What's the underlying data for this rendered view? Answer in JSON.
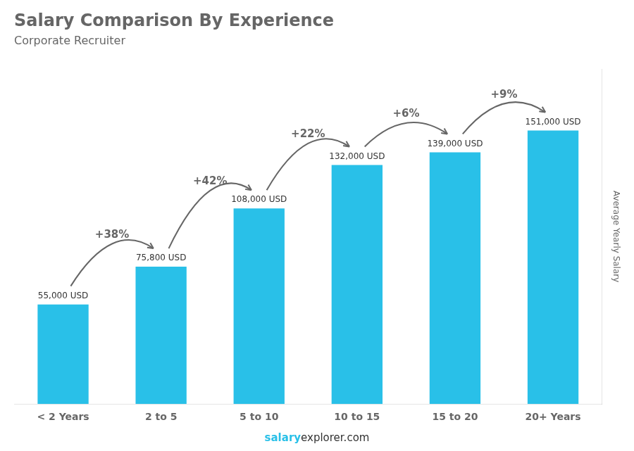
{
  "chart_data": {
    "type": "bar",
    "title": "Salary Comparison By Experience",
    "subtitle": "Corporate Recruiter",
    "y_label": "Average Yearly Salary",
    "categories": [
      "< 2 Years",
      "2 to 5",
      "5 to 10",
      "10 to 15",
      "15 to 20",
      "20+ Years"
    ],
    "values": [
      55000,
      75800,
      108000,
      132000,
      139000,
      151000
    ],
    "value_labels": [
      "55,000 USD",
      "75,800 USD",
      "108,000 USD",
      "132,000 USD",
      "139,000 USD",
      "151,000 USD"
    ],
    "data_labels": true,
    "annotations": [
      "+38%",
      "+42%",
      "+22%",
      "+6%",
      "+9%"
    ],
    "footer": [
      "salary",
      "explorer.com"
    ],
    "color": "#29c0e8",
    "ylim": [
      0,
      185000
    ],
    "grid": false,
    "tick_labels": "x"
  }
}
